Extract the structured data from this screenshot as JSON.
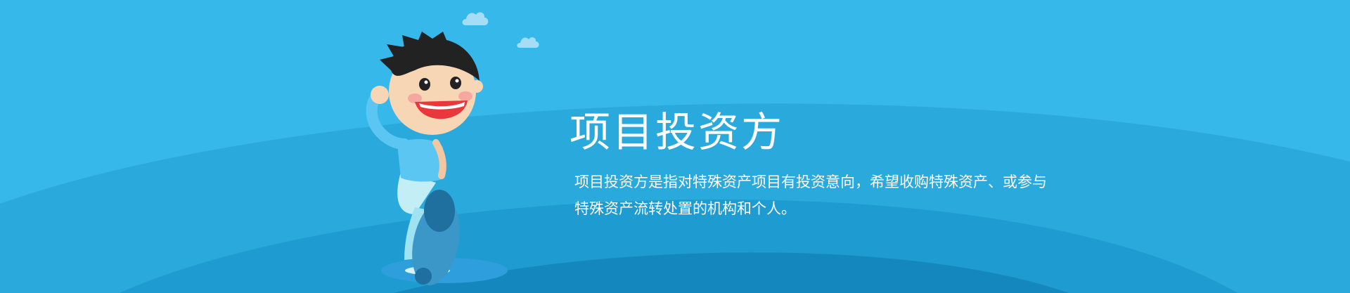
{
  "banner": {
    "title": "项目投资方",
    "description": "项目投资方是指对特殊资产项目有投资意向，希望收购特殊资产、或参与特殊资产流转处置的机构和个人。"
  },
  "colors": {
    "sky": "#37b8ea",
    "wave_light": "#2aa9dc",
    "wave_mid": "#1e9bd0",
    "wave_dark": "#1387be",
    "text": "#ffffff"
  },
  "icons": {
    "mascot": "cartoon-boy-running",
    "decorations": [
      "cloud",
      "cloud"
    ]
  }
}
